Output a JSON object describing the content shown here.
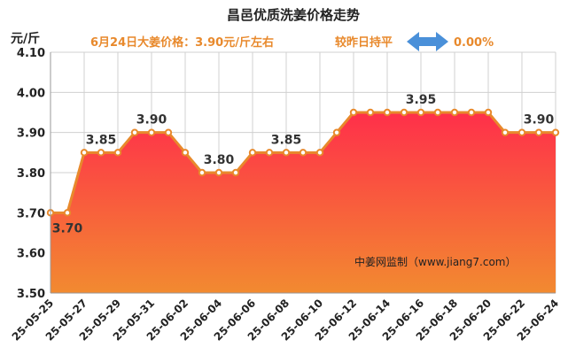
{
  "header": {
    "title": "昌邑优质洗姜价格走势",
    "unit": "元/斤",
    "price_note": "6月24日大姜价格：3.90元/斤左右",
    "compare_label": "较昨日持平",
    "change": "0.00%"
  },
  "credit": "中姜网监制（www.jiang7.com）",
  "colors": {
    "line": "#e8892c",
    "fill_top": "#ff2f4a",
    "fill_bottom": "#f28a30",
    "arrow": "#4a90d9"
  },
  "chart_data": {
    "type": "area",
    "title": "昌邑优质洗姜价格走势",
    "ylabel": "元/斤",
    "ylim": [
      3.5,
      4.1
    ],
    "yticks": [
      "3.50",
      "3.60",
      "3.70",
      "3.80",
      "3.90",
      "4.00",
      "4.10"
    ],
    "grid": true,
    "x": [
      "25-05-25",
      "25-05-26",
      "25-05-27",
      "25-05-28",
      "25-05-29",
      "25-05-30",
      "25-05-31",
      "25-06-01",
      "25-06-02",
      "25-06-03",
      "25-06-04",
      "25-06-05",
      "25-06-06",
      "25-06-07",
      "25-06-08",
      "25-06-09",
      "25-06-10",
      "25-06-11",
      "25-06-12",
      "25-06-13",
      "25-06-14",
      "25-06-15",
      "25-06-16",
      "25-06-17",
      "25-06-18",
      "25-06-19",
      "25-06-20",
      "25-06-21",
      "25-06-22",
      "25-06-23",
      "25-06-24"
    ],
    "xticks": [
      "25-05-25",
      "25-05-27",
      "25-05-29",
      "25-05-31",
      "25-06-02",
      "25-06-04",
      "25-06-06",
      "25-06-08",
      "25-06-10",
      "25-06-12",
      "25-06-14",
      "25-06-16",
      "25-06-18",
      "25-06-20",
      "25-06-22",
      "25-06-24"
    ],
    "values": [
      3.7,
      3.7,
      3.85,
      3.85,
      3.85,
      3.9,
      3.9,
      3.9,
      3.85,
      3.8,
      3.8,
      3.8,
      3.85,
      3.85,
      3.85,
      3.85,
      3.85,
      3.9,
      3.95,
      3.95,
      3.95,
      3.95,
      3.95,
      3.95,
      3.95,
      3.95,
      3.95,
      3.9,
      3.9,
      3.9,
      3.9
    ],
    "data_labels": [
      {
        "index": 1,
        "text": "3.70",
        "position": "below"
      },
      {
        "index": 3,
        "text": "3.85",
        "position": "above"
      },
      {
        "index": 6,
        "text": "3.90",
        "position": "above"
      },
      {
        "index": 10,
        "text": "3.80",
        "position": "above"
      },
      {
        "index": 14,
        "text": "3.85",
        "position": "above"
      },
      {
        "index": 22,
        "text": "3.95",
        "position": "above"
      },
      {
        "index": 29,
        "text": "3.90",
        "position": "above"
      }
    ]
  }
}
